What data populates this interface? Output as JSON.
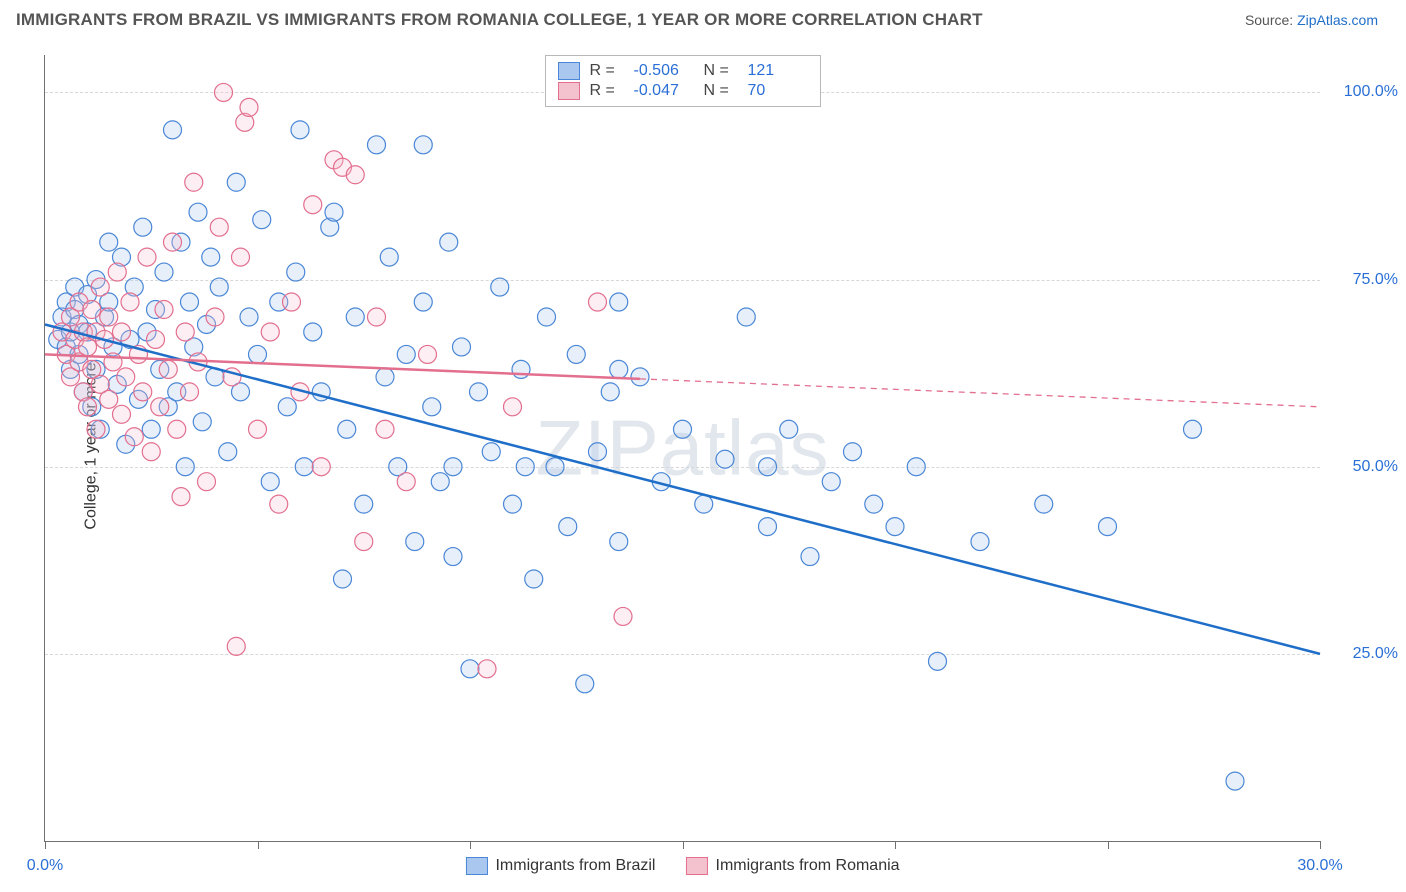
{
  "title": "IMMIGRANTS FROM BRAZIL VS IMMIGRANTS FROM ROMANIA COLLEGE, 1 YEAR OR MORE CORRELATION CHART",
  "source_prefix": "Source: ",
  "source_link": "ZipAtlas.com",
  "y_axis_label": "College, 1 year or more",
  "watermark": "ZIPatlas",
  "chart": {
    "type": "scatter",
    "background_color": "#ffffff",
    "grid_color": "#d7d7d7",
    "axis_color": "#707070",
    "xlim": [
      0,
      30
    ],
    "ylim": [
      0,
      105
    ],
    "x_ticks": [
      0,
      5,
      10,
      15,
      20,
      25,
      30
    ],
    "x_tick_labels": {
      "0": "0.0%",
      "30": "30.0%"
    },
    "y_gridlines": [
      25,
      50,
      75,
      100
    ],
    "y_tick_labels": {
      "25": "25.0%",
      "50": "50.0%",
      "75": "75.0%",
      "100": "100.0%"
    },
    "marker_radius": 9,
    "marker_stroke_width": 1.2,
    "marker_fill_opacity": 0.28,
    "trend_line_width": 2.5,
    "trend_dash": "6,5",
    "series": [
      {
        "name": "Immigrants from Brazil",
        "fill": "#a9c7ef",
        "stroke": "#4a87d6",
        "trend_color": "#1f6ec8",
        "R": "-0.506",
        "N": "121",
        "trend": {
          "x1": 0,
          "y1": 69,
          "x2": 30,
          "y2": 25
        },
        "x_data_max": 30,
        "points": [
          [
            0.3,
            67
          ],
          [
            0.4,
            70
          ],
          [
            0.5,
            72
          ],
          [
            0.5,
            66
          ],
          [
            0.6,
            68
          ],
          [
            0.6,
            63
          ],
          [
            0.7,
            71
          ],
          [
            0.7,
            74
          ],
          [
            0.8,
            69
          ],
          [
            0.8,
            65
          ],
          [
            0.9,
            60
          ],
          [
            1.0,
            73
          ],
          [
            1.0,
            68
          ],
          [
            1.1,
            58
          ],
          [
            1.2,
            75
          ],
          [
            1.2,
            63
          ],
          [
            1.3,
            55
          ],
          [
            1.4,
            70
          ],
          [
            1.5,
            72
          ],
          [
            1.5,
            80
          ],
          [
            1.6,
            66
          ],
          [
            1.7,
            61
          ],
          [
            1.8,
            78
          ],
          [
            1.9,
            53
          ],
          [
            2.0,
            67
          ],
          [
            2.1,
            74
          ],
          [
            2.2,
            59
          ],
          [
            2.3,
            82
          ],
          [
            2.4,
            68
          ],
          [
            2.5,
            55
          ],
          [
            2.6,
            71
          ],
          [
            2.7,
            63
          ],
          [
            2.8,
            76
          ],
          [
            2.9,
            58
          ],
          [
            3.0,
            95
          ],
          [
            3.1,
            60
          ],
          [
            3.2,
            80
          ],
          [
            3.3,
            50
          ],
          [
            3.4,
            72
          ],
          [
            3.5,
            66
          ],
          [
            3.6,
            84
          ],
          [
            3.7,
            56
          ],
          [
            3.8,
            69
          ],
          [
            3.9,
            78
          ],
          [
            4.0,
            62
          ],
          [
            4.1,
            74
          ],
          [
            4.3,
            52
          ],
          [
            4.5,
            88
          ],
          [
            4.6,
            60
          ],
          [
            4.8,
            70
          ],
          [
            5.0,
            65
          ],
          [
            5.1,
            83
          ],
          [
            5.3,
            48
          ],
          [
            5.5,
            72
          ],
          [
            5.7,
            58
          ],
          [
            5.9,
            76
          ],
          [
            6.0,
            95
          ],
          [
            6.1,
            50
          ],
          [
            6.3,
            68
          ],
          [
            6.5,
            60
          ],
          [
            6.7,
            82
          ],
          [
            6.8,
            84
          ],
          [
            7.0,
            35
          ],
          [
            7.1,
            55
          ],
          [
            7.3,
            70
          ],
          [
            7.5,
            45
          ],
          [
            7.8,
            93
          ],
          [
            8.0,
            62
          ],
          [
            8.1,
            78
          ],
          [
            8.3,
            50
          ],
          [
            8.5,
            65
          ],
          [
            8.7,
            40
          ],
          [
            8.9,
            72
          ],
          [
            8.9,
            93
          ],
          [
            9.1,
            58
          ],
          [
            9.3,
            48
          ],
          [
            9.5,
            80
          ],
          [
            9.6,
            50
          ],
          [
            9.6,
            38
          ],
          [
            9.8,
            66
          ],
          [
            10.0,
            23
          ],
          [
            10.2,
            60
          ],
          [
            10.5,
            52
          ],
          [
            10.7,
            74
          ],
          [
            11.0,
            45
          ],
          [
            11.2,
            63
          ],
          [
            11.3,
            50
          ],
          [
            11.5,
            35
          ],
          [
            11.8,
            70
          ],
          [
            12.0,
            50
          ],
          [
            12.3,
            42
          ],
          [
            12.5,
            65
          ],
          [
            12.7,
            21
          ],
          [
            13.0,
            52
          ],
          [
            13.3,
            60
          ],
          [
            13.5,
            40
          ],
          [
            13.5,
            72
          ],
          [
            13.5,
            63
          ],
          [
            14.0,
            62
          ],
          [
            14.5,
            48
          ],
          [
            15.0,
            55
          ],
          [
            15.5,
            45
          ],
          [
            16.0,
            51
          ],
          [
            16.5,
            70
          ],
          [
            17.0,
            50
          ],
          [
            17.0,
            42
          ],
          [
            17.5,
            55
          ],
          [
            18.0,
            38
          ],
          [
            18.5,
            48
          ],
          [
            19.0,
            52
          ],
          [
            19.5,
            45
          ],
          [
            20.0,
            42
          ],
          [
            20.5,
            50
          ],
          [
            21.0,
            24
          ],
          [
            22.0,
            40
          ],
          [
            23.5,
            45
          ],
          [
            25.0,
            42
          ],
          [
            27.0,
            55
          ],
          [
            28.0,
            8
          ]
        ]
      },
      {
        "name": "Immigrants from Romania",
        "fill": "#f4c2cf",
        "stroke": "#e36f8f",
        "trend_color": "#e36f8f",
        "R": "-0.047",
        "N": "70",
        "trend": {
          "x1": 0,
          "y1": 65,
          "x2": 30,
          "y2": 58
        },
        "x_data_max": 14,
        "points": [
          [
            0.4,
            68
          ],
          [
            0.5,
            65
          ],
          [
            0.6,
            70
          ],
          [
            0.6,
            62
          ],
          [
            0.7,
            67
          ],
          [
            0.8,
            64
          ],
          [
            0.8,
            72
          ],
          [
            0.9,
            60
          ],
          [
            0.9,
            68
          ],
          [
            1.0,
            66
          ],
          [
            1.0,
            58
          ],
          [
            1.1,
            71
          ],
          [
            1.1,
            63
          ],
          [
            1.2,
            68
          ],
          [
            1.2,
            55
          ],
          [
            1.3,
            74
          ],
          [
            1.3,
            61
          ],
          [
            1.4,
            67
          ],
          [
            1.5,
            59
          ],
          [
            1.5,
            70
          ],
          [
            1.6,
            64
          ],
          [
            1.7,
            76
          ],
          [
            1.8,
            57
          ],
          [
            1.8,
            68
          ],
          [
            1.9,
            62
          ],
          [
            2.0,
            72
          ],
          [
            2.1,
            54
          ],
          [
            2.2,
            65
          ],
          [
            2.3,
            60
          ],
          [
            2.4,
            78
          ],
          [
            2.5,
            52
          ],
          [
            2.6,
            67
          ],
          [
            2.7,
            58
          ],
          [
            2.8,
            71
          ],
          [
            2.9,
            63
          ],
          [
            3.0,
            80
          ],
          [
            3.1,
            55
          ],
          [
            3.2,
            46
          ],
          [
            3.3,
            68
          ],
          [
            3.4,
            60
          ],
          [
            3.5,
            88
          ],
          [
            3.6,
            64
          ],
          [
            3.8,
            48
          ],
          [
            4.0,
            70
          ],
          [
            4.1,
            82
          ],
          [
            4.2,
            100
          ],
          [
            4.4,
            62
          ],
          [
            4.5,
            26
          ],
          [
            4.6,
            78
          ],
          [
            4.7,
            96
          ],
          [
            4.8,
            98
          ],
          [
            5.0,
            55
          ],
          [
            5.3,
            68
          ],
          [
            5.5,
            45
          ],
          [
            5.8,
            72
          ],
          [
            6.0,
            60
          ],
          [
            6.3,
            85
          ],
          [
            6.5,
            50
          ],
          [
            6.8,
            91
          ],
          [
            7.0,
            90
          ],
          [
            7.3,
            89
          ],
          [
            7.5,
            40
          ],
          [
            7.8,
            70
          ],
          [
            8.0,
            55
          ],
          [
            8.5,
            48
          ],
          [
            9.0,
            65
          ],
          [
            10.4,
            23
          ],
          [
            11.0,
            58
          ],
          [
            13.0,
            72
          ],
          [
            13.6,
            30
          ]
        ]
      }
    ]
  },
  "legend_top": {
    "r_label": "R =",
    "n_label": "N ="
  }
}
